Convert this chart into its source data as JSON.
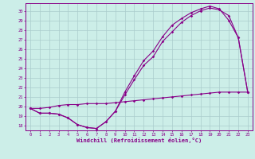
{
  "xlabel": "Windchill (Refroidissement éolien,°C)",
  "bg_color": "#cceee8",
  "line_color": "#880088",
  "grid_color": "#aacccc",
  "xlim_min": -0.5,
  "xlim_max": 23.5,
  "ylim_min": 17.5,
  "ylim_max": 30.8,
  "yticks": [
    18,
    19,
    20,
    21,
    22,
    23,
    24,
    25,
    26,
    27,
    28,
    29,
    30
  ],
  "xticks": [
    0,
    1,
    2,
    3,
    4,
    5,
    6,
    7,
    8,
    9,
    10,
    11,
    12,
    13,
    14,
    15,
    16,
    17,
    18,
    19,
    20,
    21,
    22,
    23
  ],
  "curve1_x": [
    0,
    1,
    2,
    3,
    4,
    5,
    6,
    7,
    8,
    9,
    10,
    11,
    12,
    13,
    14,
    15,
    16,
    17,
    18,
    19,
    20,
    21,
    22,
    23
  ],
  "curve1_y": [
    19.8,
    19.3,
    19.3,
    19.2,
    18.8,
    18.1,
    17.8,
    17.7,
    18.4,
    19.5,
    21.5,
    23.2,
    24.8,
    25.8,
    27.3,
    28.5,
    29.2,
    29.8,
    30.2,
    30.5,
    30.2,
    29.0,
    27.2,
    21.5
  ],
  "curve2_x": [
    0,
    1,
    2,
    3,
    4,
    5,
    6,
    7,
    8,
    9,
    10,
    11,
    12,
    13,
    14,
    15,
    16,
    17,
    18,
    19,
    20,
    21,
    22,
    23
  ],
  "curve2_y": [
    19.8,
    19.3,
    19.3,
    19.2,
    18.8,
    18.1,
    17.8,
    17.7,
    18.4,
    19.5,
    21.2,
    22.8,
    24.3,
    25.2,
    26.8,
    27.8,
    28.8,
    29.5,
    30.0,
    30.3,
    30.1,
    29.5,
    27.2,
    21.5
  ],
  "curve3_x": [
    0,
    1,
    2,
    3,
    4,
    5,
    6,
    7,
    8,
    9,
    10,
    11,
    12,
    13,
    14,
    15,
    16,
    17,
    18,
    19,
    20,
    21,
    22,
    23
  ],
  "curve3_y": [
    19.8,
    19.8,
    19.9,
    20.1,
    20.2,
    20.2,
    20.3,
    20.3,
    20.3,
    20.4,
    20.5,
    20.6,
    20.7,
    20.8,
    20.9,
    21.0,
    21.1,
    21.2,
    21.3,
    21.4,
    21.5,
    21.5,
    21.5,
    21.5
  ]
}
